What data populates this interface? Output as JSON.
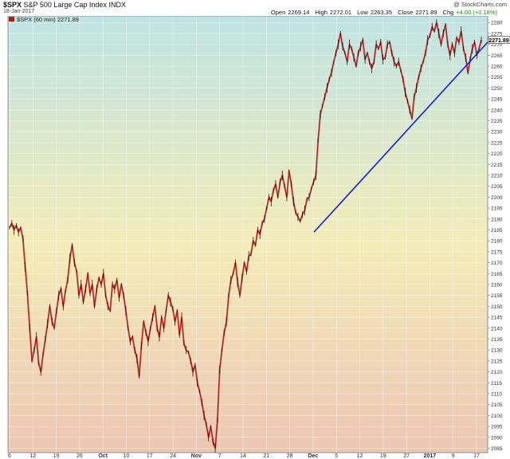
{
  "header": {
    "symbol": "$SPX",
    "name": "S&P 500 Large Cap Index",
    "exchange": "INDX",
    "date": "18-Jan-2017",
    "watermark": "@ StockCharts.com",
    "open_label": "Open",
    "open": "2269.14",
    "high_label": "High",
    "high": "2272.01",
    "low_label": "Low",
    "low": "2263.35",
    "close_label": "Close",
    "close": "2271.89",
    "chg_label": "Chg",
    "chg": "+4.00 (+0.18%)",
    "chg_color": "#00a000"
  },
  "legend": {
    "text": "$SPX (60 min) 2271.89",
    "last_price": "2271.89"
  },
  "chart_data": {
    "type": "line",
    "interval": "60 min",
    "x_ticks": [
      "6",
      "12",
      "19",
      "26",
      "Oct",
      "10",
      "17",
      "24",
      "Nov",
      "7",
      "14",
      "21",
      "28",
      "Dec",
      "5",
      "12",
      "19",
      "27",
      "2017",
      "9",
      "17"
    ],
    "ylim": [
      2083,
      2283
    ],
    "y_ticks": [
      2085,
      2090,
      2095,
      2100,
      2105,
      2110,
      2115,
      2120,
      2125,
      2130,
      2135,
      2140,
      2145,
      2150,
      2155,
      2160,
      2165,
      2170,
      2175,
      2180,
      2185,
      2190,
      2195,
      2200,
      2205,
      2210,
      2215,
      2220,
      2225,
      2230,
      2235,
      2240,
      2245,
      2250,
      2255,
      2260,
      2265,
      2270,
      2275,
      2280
    ],
    "series_color": "#cc1111",
    "trendline_color": "#1a1ad8",
    "background_gradient": [
      "#bfe3e3",
      "#f3ecb8",
      "#ecc6b4"
    ],
    "series": [
      {
        "name": "$SPX (60 min)",
        "values": [
          2186,
          2188,
          2185,
          2187,
          2184,
          2186,
          2181,
          2168,
          2156,
          2140,
          2125,
          2130,
          2136,
          2124,
          2120,
          2128,
          2135,
          2142,
          2150,
          2143,
          2140,
          2148,
          2155,
          2158,
          2150,
          2157,
          2162,
          2172,
          2178,
          2170,
          2166,
          2155,
          2160,
          2152,
          2158,
          2165,
          2156,
          2160,
          2150,
          2158,
          2163,
          2160,
          2165,
          2155,
          2150,
          2148,
          2160,
          2158,
          2162,
          2154,
          2160,
          2155,
          2148,
          2140,
          2134,
          2136,
          2130,
          2126,
          2118,
          2132,
          2143,
          2138,
          2134,
          2140,
          2145,
          2150,
          2140,
          2136,
          2145,
          2140,
          2148,
          2155,
          2152,
          2149,
          2143,
          2148,
          2137,
          2145,
          2133,
          2130,
          2129,
          2125,
          2120,
          2123,
          2115,
          2111,
          2106,
          2100,
          2096,
          2090,
          2095,
          2088,
          2085,
          2098,
          2121,
          2130,
          2138,
          2143,
          2155,
          2162,
          2165,
          2170,
          2161,
          2155,
          2163,
          2170,
          2166,
          2173,
          2174,
          2180,
          2178,
          2185,
          2183,
          2188,
          2190,
          2195,
          2200,
          2198,
          2203,
          2206,
          2200,
          2207,
          2210,
          2205,
          2200,
          2212,
          2206,
          2198,
          2193,
          2191,
          2189,
          2192,
          2194,
          2199,
          2200,
          2204,
          2207,
          2210,
          2226,
          2238,
          2242,
          2246,
          2250,
          2254,
          2257,
          2262,
          2266,
          2270,
          2275,
          2269,
          2266,
          2262,
          2270,
          2268,
          2264,
          2260,
          2266,
          2269,
          2272,
          2263,
          2266,
          2262,
          2259,
          2262,
          2270,
          2268,
          2271,
          2263,
          2264,
          2270,
          2271,
          2266,
          2262,
          2260,
          2262,
          2258,
          2254,
          2248,
          2244,
          2240,
          2236,
          2246,
          2250,
          2255,
          2259,
          2262,
          2266,
          2272,
          2274,
          2278,
          2276,
          2280,
          2275,
          2270,
          2275,
          2279,
          2270,
          2265,
          2270,
          2266,
          2273,
          2271,
          2276,
          2268,
          2264,
          2257,
          2263,
          2268,
          2271,
          2265,
          2268,
          2272
        ]
      }
    ],
    "trendline": {
      "from": {
        "x": "Nov 30",
        "y": 2184
      },
      "to": {
        "x": "Jan 18",
        "y": 2271
      }
    },
    "grid": true
  }
}
